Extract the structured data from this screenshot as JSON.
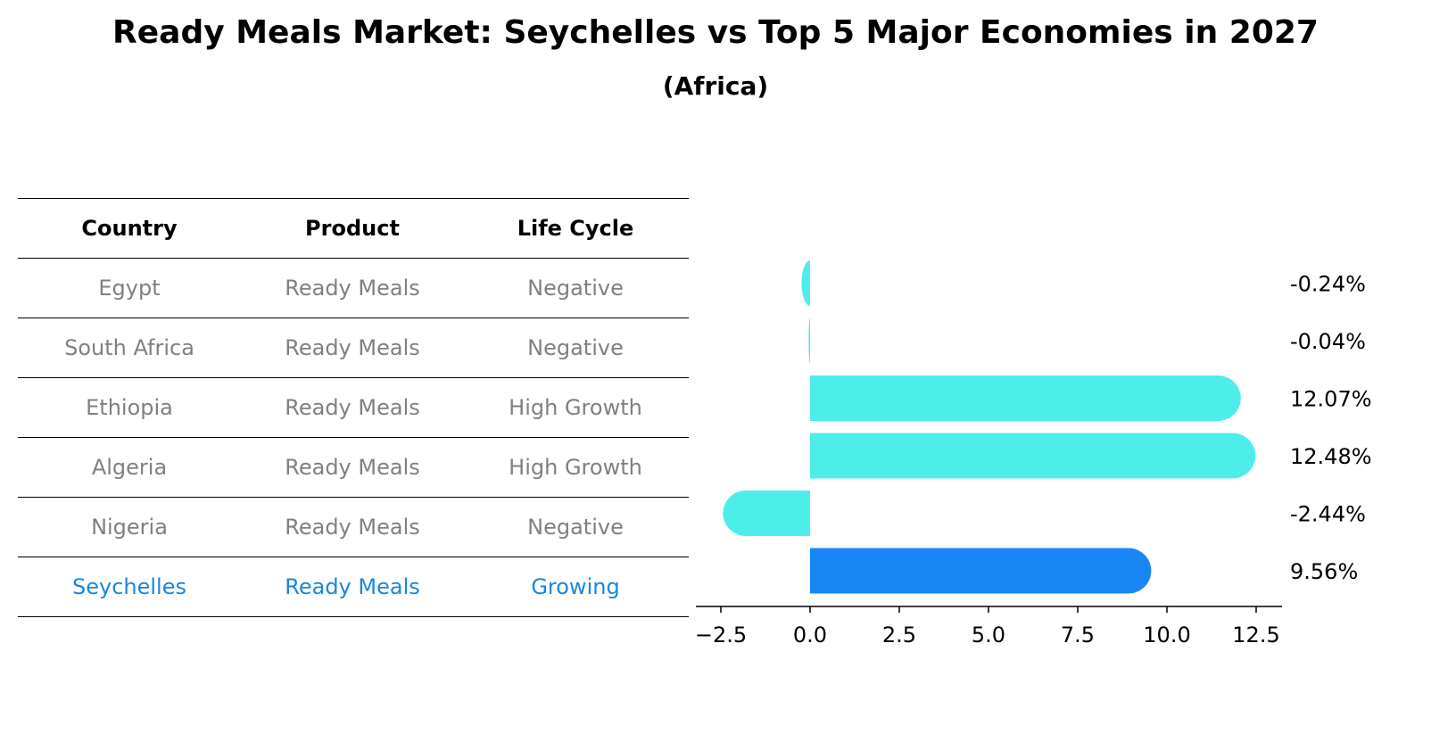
{
  "title": "Ready Meals Market: Seychelles vs Top 5 Major Economies in 2027",
  "subtitle": "(Africa)",
  "table": {
    "headers": [
      "Country",
      "Product",
      "Life Cycle"
    ],
    "rows": [
      [
        "Egypt",
        "Ready Meals",
        "Negative"
      ],
      [
        "South Africa",
        "Ready Meals",
        "Negative"
      ],
      [
        "Ethiopia",
        "Ready Meals",
        "High Growth"
      ],
      [
        "Algeria",
        "Ready Meals",
        "High Growth"
      ],
      [
        "Nigeria",
        "Ready Meals",
        "Negative"
      ],
      [
        "Seychelles",
        "Ready Meals",
        "Growing"
      ]
    ]
  },
  "colors": {
    "bar": "#4deeea",
    "highlight": "#1a86f5",
    "highlight_text": "#1a86e0",
    "muted_text": "#808080"
  },
  "chart_data": {
    "type": "bar",
    "orientation": "horizontal",
    "categories": [
      "Egypt",
      "South Africa",
      "Ethiopia",
      "Algeria",
      "Nigeria",
      "Seychelles"
    ],
    "values": [
      -0.24,
      -0.04,
      12.07,
      12.48,
      -2.44,
      9.56
    ],
    "labels": [
      "-0.24%",
      "-0.04%",
      "12.07%",
      "12.48%",
      "-2.44%",
      "9.56%"
    ],
    "highlight": "Seychelles",
    "xlim": [
      -3.2,
      13.3
    ],
    "xticks": [
      -2.5,
      0.0,
      2.5,
      5.0,
      7.5,
      10.0,
      12.5
    ],
    "xtick_labels": [
      "−2.5",
      "0.0",
      "2.5",
      "5.0",
      "7.5",
      "10.0",
      "12.5"
    ],
    "grid": false
  }
}
